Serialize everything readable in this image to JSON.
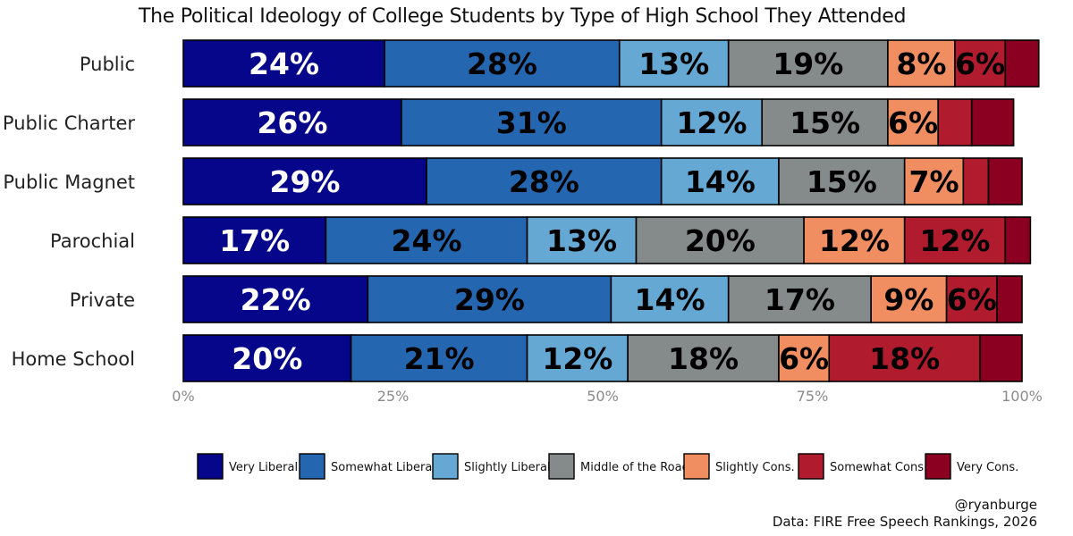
{
  "chart_data": {
    "type": "bar",
    "orientation": "horizontal",
    "stacked": true,
    "title": "The Political Ideology of College Students by Type of High School They Attended",
    "categories": [
      "Public",
      "Public Charter",
      "Public Magnet",
      "Parochial",
      "Private",
      "Home School"
    ],
    "series": [
      {
        "name": "Very Liberal",
        "color": "#06068a",
        "values": [
          24,
          26,
          29,
          17,
          22,
          20
        ],
        "labels": [
          "24%",
          "26%",
          "29%",
          "17%",
          "22%",
          "20%"
        ]
      },
      {
        "name": "Somewhat Liberal",
        "color": "#2566b0",
        "values": [
          28,
          31,
          28,
          24,
          29,
          21
        ],
        "labels": [
          "28%",
          "31%",
          "28%",
          "24%",
          "29%",
          "21%"
        ]
      },
      {
        "name": "Slightly Liberal",
        "color": "#66a8d4",
        "values": [
          13,
          12,
          14,
          13,
          14,
          12
        ],
        "labels": [
          "13%",
          "12%",
          "14%",
          "13%",
          "14%",
          "12%"
        ]
      },
      {
        "name": "Middle of the Road",
        "color": "#858a8a",
        "values": [
          19,
          15,
          15,
          20,
          17,
          18
        ],
        "labels": [
          "19%",
          "15%",
          "15%",
          "20%",
          "17%",
          "18%"
        ]
      },
      {
        "name": "Slightly Cons.",
        "color": "#f08e62",
        "values": [
          8,
          6,
          7,
          12,
          9,
          6
        ],
        "labels": [
          "8%",
          "6%",
          "7%",
          "12%",
          "9%",
          "6%"
        ]
      },
      {
        "name": "Somewhat Cons.",
        "color": "#b01b2e",
        "values": [
          6,
          4,
          3,
          12,
          6,
          18
        ],
        "labels": [
          "6%",
          "",
          "",
          "12%",
          "6%",
          "18%"
        ]
      },
      {
        "name": "Very Cons.",
        "color": "#8b0020",
        "values": [
          4,
          5,
          4,
          3,
          3,
          5
        ],
        "labels": [
          "",
          "",
          "",
          "",
          "",
          ""
        ]
      }
    ],
    "xlim": [
      0,
      100
    ],
    "xticks": [
      0,
      25,
      50,
      75,
      100
    ],
    "xtick_labels": [
      "0%",
      "25%",
      "50%",
      "75%",
      "100%"
    ],
    "xlabel": "",
    "ylabel": "",
    "legend": "bottom"
  },
  "caption": {
    "handle": "@ryanburge",
    "source": "Data: FIRE Free Speech Rankings, 2026"
  }
}
